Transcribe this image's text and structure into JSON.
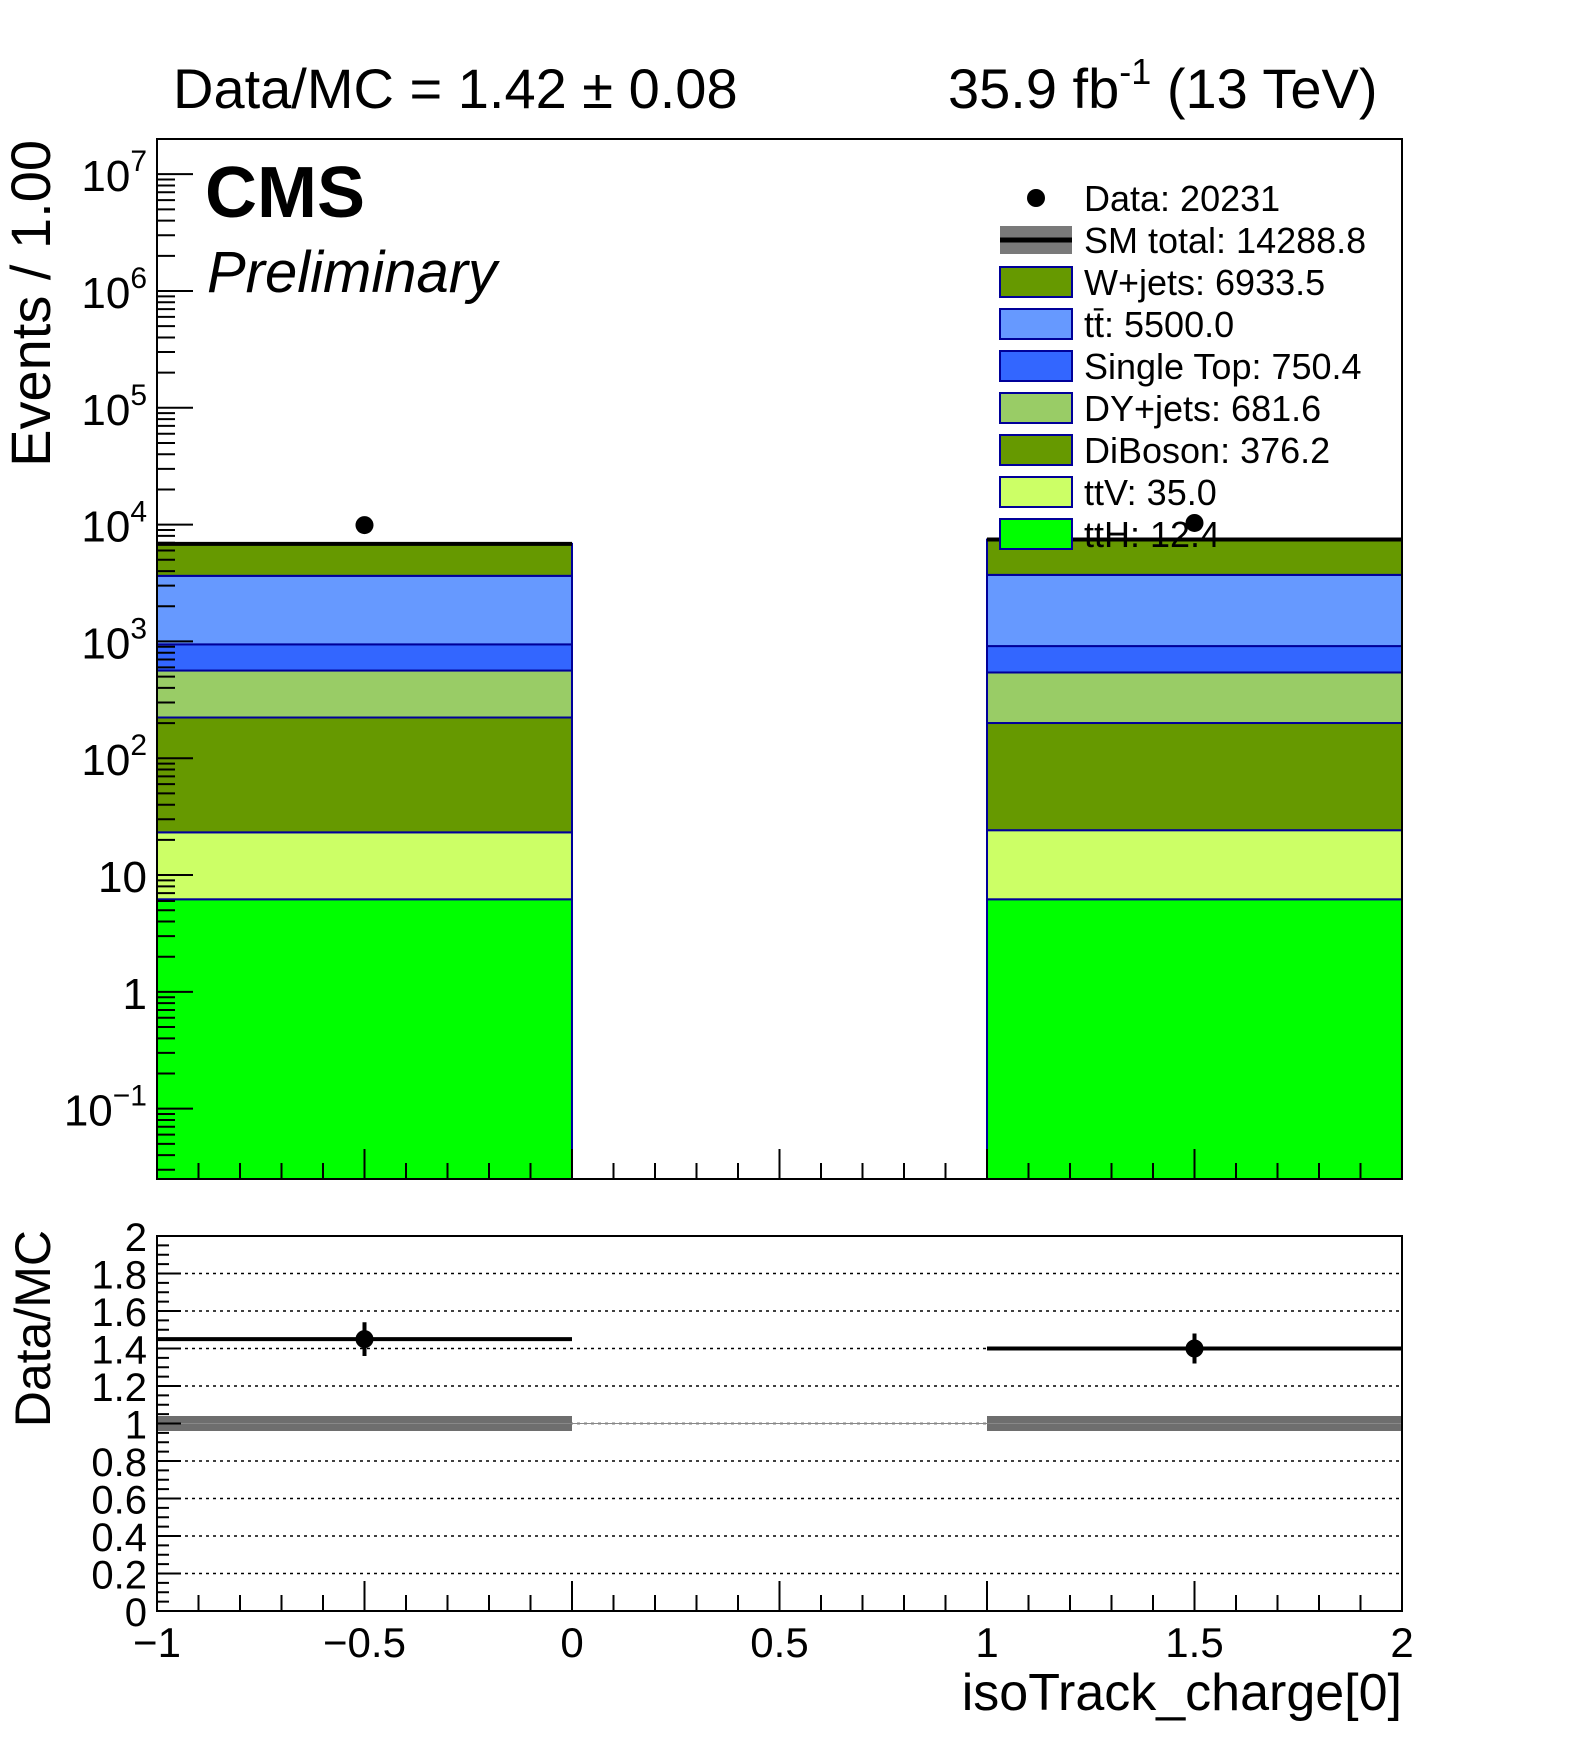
{
  "header": {
    "ratio_text": "Data/MC = 1.42 ± 0.08",
    "lumi_value": "35.9 fb",
    "lumi_exp": "-1",
    "lumi_energy": " (13 TeV)"
  },
  "labels": {
    "cms": "CMS",
    "preliminary": "Preliminary"
  },
  "chart_data": {
    "type": "bar",
    "stacked": true,
    "log_y": true,
    "xlabel": "isoTrack_charge[0]",
    "ylabel": "Events / 1.00",
    "ratio_ylabel": "Data/MC",
    "xlim": [
      -1,
      2
    ],
    "ylim": [
      0.025,
      20000000
    ],
    "ratio_ylim": [
      0,
      2
    ],
    "bins": [
      [
        -1,
        0
      ],
      [
        1,
        2
      ]
    ],
    "x_ticks": [
      "−1",
      "−0.5",
      "0",
      "0.5",
      "1",
      "1.5",
      "2"
    ],
    "y_ticks_exp": [
      {
        "base": "10",
        "exp": "7"
      },
      {
        "base": "10",
        "exp": "6"
      },
      {
        "base": "10",
        "exp": "5"
      },
      {
        "base": "10",
        "exp": "4"
      },
      {
        "base": "10",
        "exp": "3"
      },
      {
        "base": "10",
        "exp": "2"
      },
      {
        "base": "10",
        "exp": ""
      },
      {
        "base": "1",
        "exp": ""
      },
      {
        "base": "10",
        "exp": "−1"
      }
    ],
    "ratio_ticks": [
      "2",
      "1.8",
      "1.6",
      "1.4",
      "1.2",
      "1",
      "0.8",
      "0.6",
      "0.4",
      "0.2",
      "0"
    ],
    "series": [
      {
        "name": "ttH: 12.4",
        "color": "#00ff00",
        "values": [
          6.2,
          6.2
        ]
      },
      {
        "name": "ttV: 35.0",
        "color": "#ccff66",
        "values": [
          17,
          18
        ]
      },
      {
        "name": "DiBoson: 376.2",
        "color": "#669900",
        "values": [
          200,
          176
        ]
      },
      {
        "name": "DY+jets: 681.6",
        "color": "#99cc66",
        "values": [
          340,
          342
        ]
      },
      {
        "name": "Single Top: 750.4",
        "color": "#3366ff",
        "values": [
          380,
          370
        ]
      },
      {
        "name": "tt̄: 5500.0",
        "color": "#6699ff",
        "values": [
          2700,
          2800
        ]
      },
      {
        "name": "W+jets: 6933.5",
        "color": "#669900",
        "values": [
          3200,
          3733
        ]
      }
    ],
    "data_series": {
      "name": "Data: 20231",
      "values": [
        9900,
        10331
      ]
    },
    "sm_total": {
      "name": "SM total: 14288.8",
      "values": [
        6840,
        7449
      ]
    },
    "ratio": {
      "values": [
        1.45,
        1.4
      ],
      "errors": [
        0.09,
        0.08
      ]
    },
    "legend": [
      "Data: 20231",
      "SM total: 14288.8",
      "W+jets: 6933.5",
      "tt̄: 5500.0",
      "Single Top: 750.4",
      "DY+jets: 681.6",
      "DiBoson: 376.2",
      "ttV: 35.0",
      "ttH: 12.4"
    ],
    "legend_placement": "top-right"
  }
}
